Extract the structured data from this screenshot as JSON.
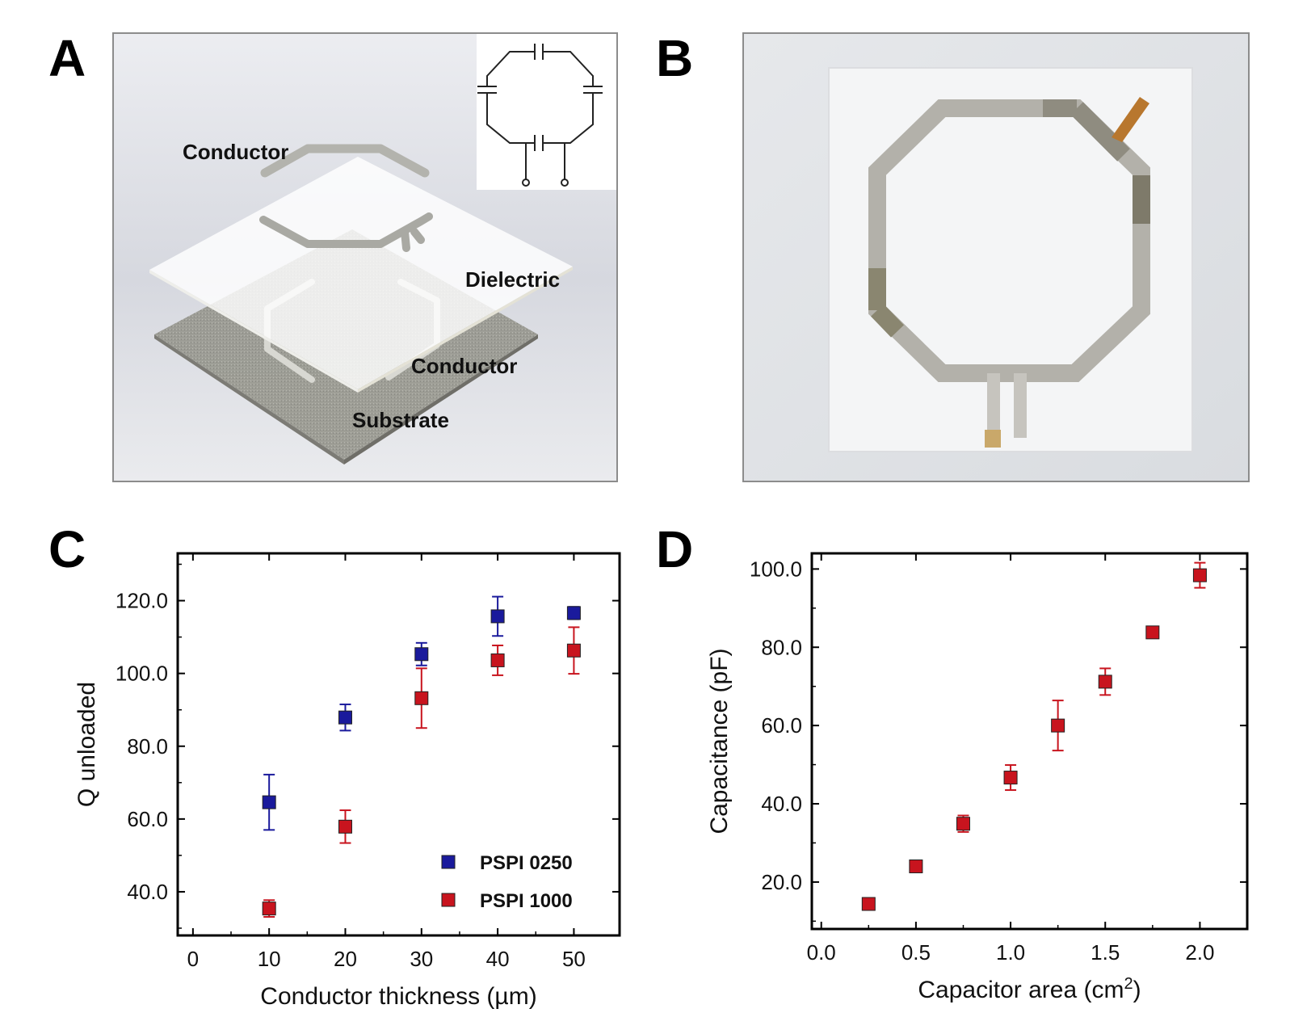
{
  "panels": {
    "a": {
      "letter": "A",
      "labels": {
        "conductor_top": "Conductor",
        "dielectric": "Dielectric",
        "conductor_bottom": "Conductor",
        "substrate": "Substrate"
      }
    },
    "b": {
      "letter": "B"
    },
    "c": {
      "letter": "C"
    },
    "d": {
      "letter": "D"
    }
  },
  "colors": {
    "blue": "#1a1a9c",
    "red": "#c8141e",
    "panel_border": "#8c8c8c"
  },
  "chart_data": [
    {
      "id": "C",
      "type": "scatter",
      "xlabel": "Conductor thickness (µm)",
      "ylabel": "Q unloaded",
      "xlim": [
        -2,
        56
      ],
      "ylim": [
        28,
        133
      ],
      "xticks": [
        0,
        10,
        20,
        30,
        40,
        50
      ],
      "xtick_labels": [
        "0",
        "10",
        "20",
        "30",
        "40",
        "50"
      ],
      "yticks": [
        40,
        60,
        80,
        100,
        120
      ],
      "ytick_labels": [
        "40.0",
        "60.0",
        "80.0",
        "100.0",
        "120.0"
      ],
      "legend_position": "bottom-right",
      "series": [
        {
          "name": "PSPI 0250",
          "color": "#1a1a9c",
          "x": [
            10,
            20,
            30,
            40,
            50
          ],
          "y": [
            64.6,
            87.9,
            105.3,
            115.7,
            116.6
          ],
          "err_low": [
            7.6,
            3.6,
            3.1,
            5.4,
            1.7
          ],
          "err_high": [
            7.6,
            3.6,
            3.1,
            5.4,
            1.7
          ]
        },
        {
          "name": "PSPI 1000",
          "color": "#c8141e",
          "x": [
            10,
            20,
            30,
            40,
            50
          ],
          "y": [
            35.4,
            57.9,
            93.2,
            103.6,
            106.3
          ],
          "err_low": [
            2.3,
            4.5,
            8.2,
            4.1,
            6.4
          ],
          "err_high": [
            2.3,
            4.5,
            8.2,
            4.1,
            6.4
          ]
        }
      ]
    },
    {
      "id": "D",
      "type": "scatter",
      "xlabel": "Capacitor area (cm",
      "xlabel_sup": "2",
      "xlabel_end": ")",
      "ylabel": "Capacitance (pF)",
      "xlim": [
        -0.05,
        2.25
      ],
      "ylim": [
        8,
        104
      ],
      "xticks": [
        0,
        0.5,
        1.0,
        1.5,
        2.0
      ],
      "xtick_labels": [
        "0.0",
        "0.5",
        "1.0",
        "1.5",
        "2.0"
      ],
      "yticks": [
        20,
        40,
        60,
        80,
        100
      ],
      "ytick_labels": [
        "20.0",
        "40.0",
        "60.0",
        "80.0",
        "100.0"
      ],
      "series": [
        {
          "name": "Capacitance",
          "color": "#c8141e",
          "x": [
            0.25,
            0.5,
            0.75,
            1.0,
            1.25,
            1.5,
            1.75,
            2.0
          ],
          "y": [
            14.4,
            24.0,
            34.9,
            46.7,
            60.0,
            71.2,
            83.8,
            98.4
          ],
          "err_low": [
            0.6,
            0.6,
            2.1,
            3.2,
            6.4,
            3.4,
            0.6,
            3.2
          ],
          "err_high": [
            0.6,
            0.6,
            2.1,
            3.2,
            6.4,
            3.4,
            0.6,
            3.2
          ]
        }
      ]
    }
  ]
}
